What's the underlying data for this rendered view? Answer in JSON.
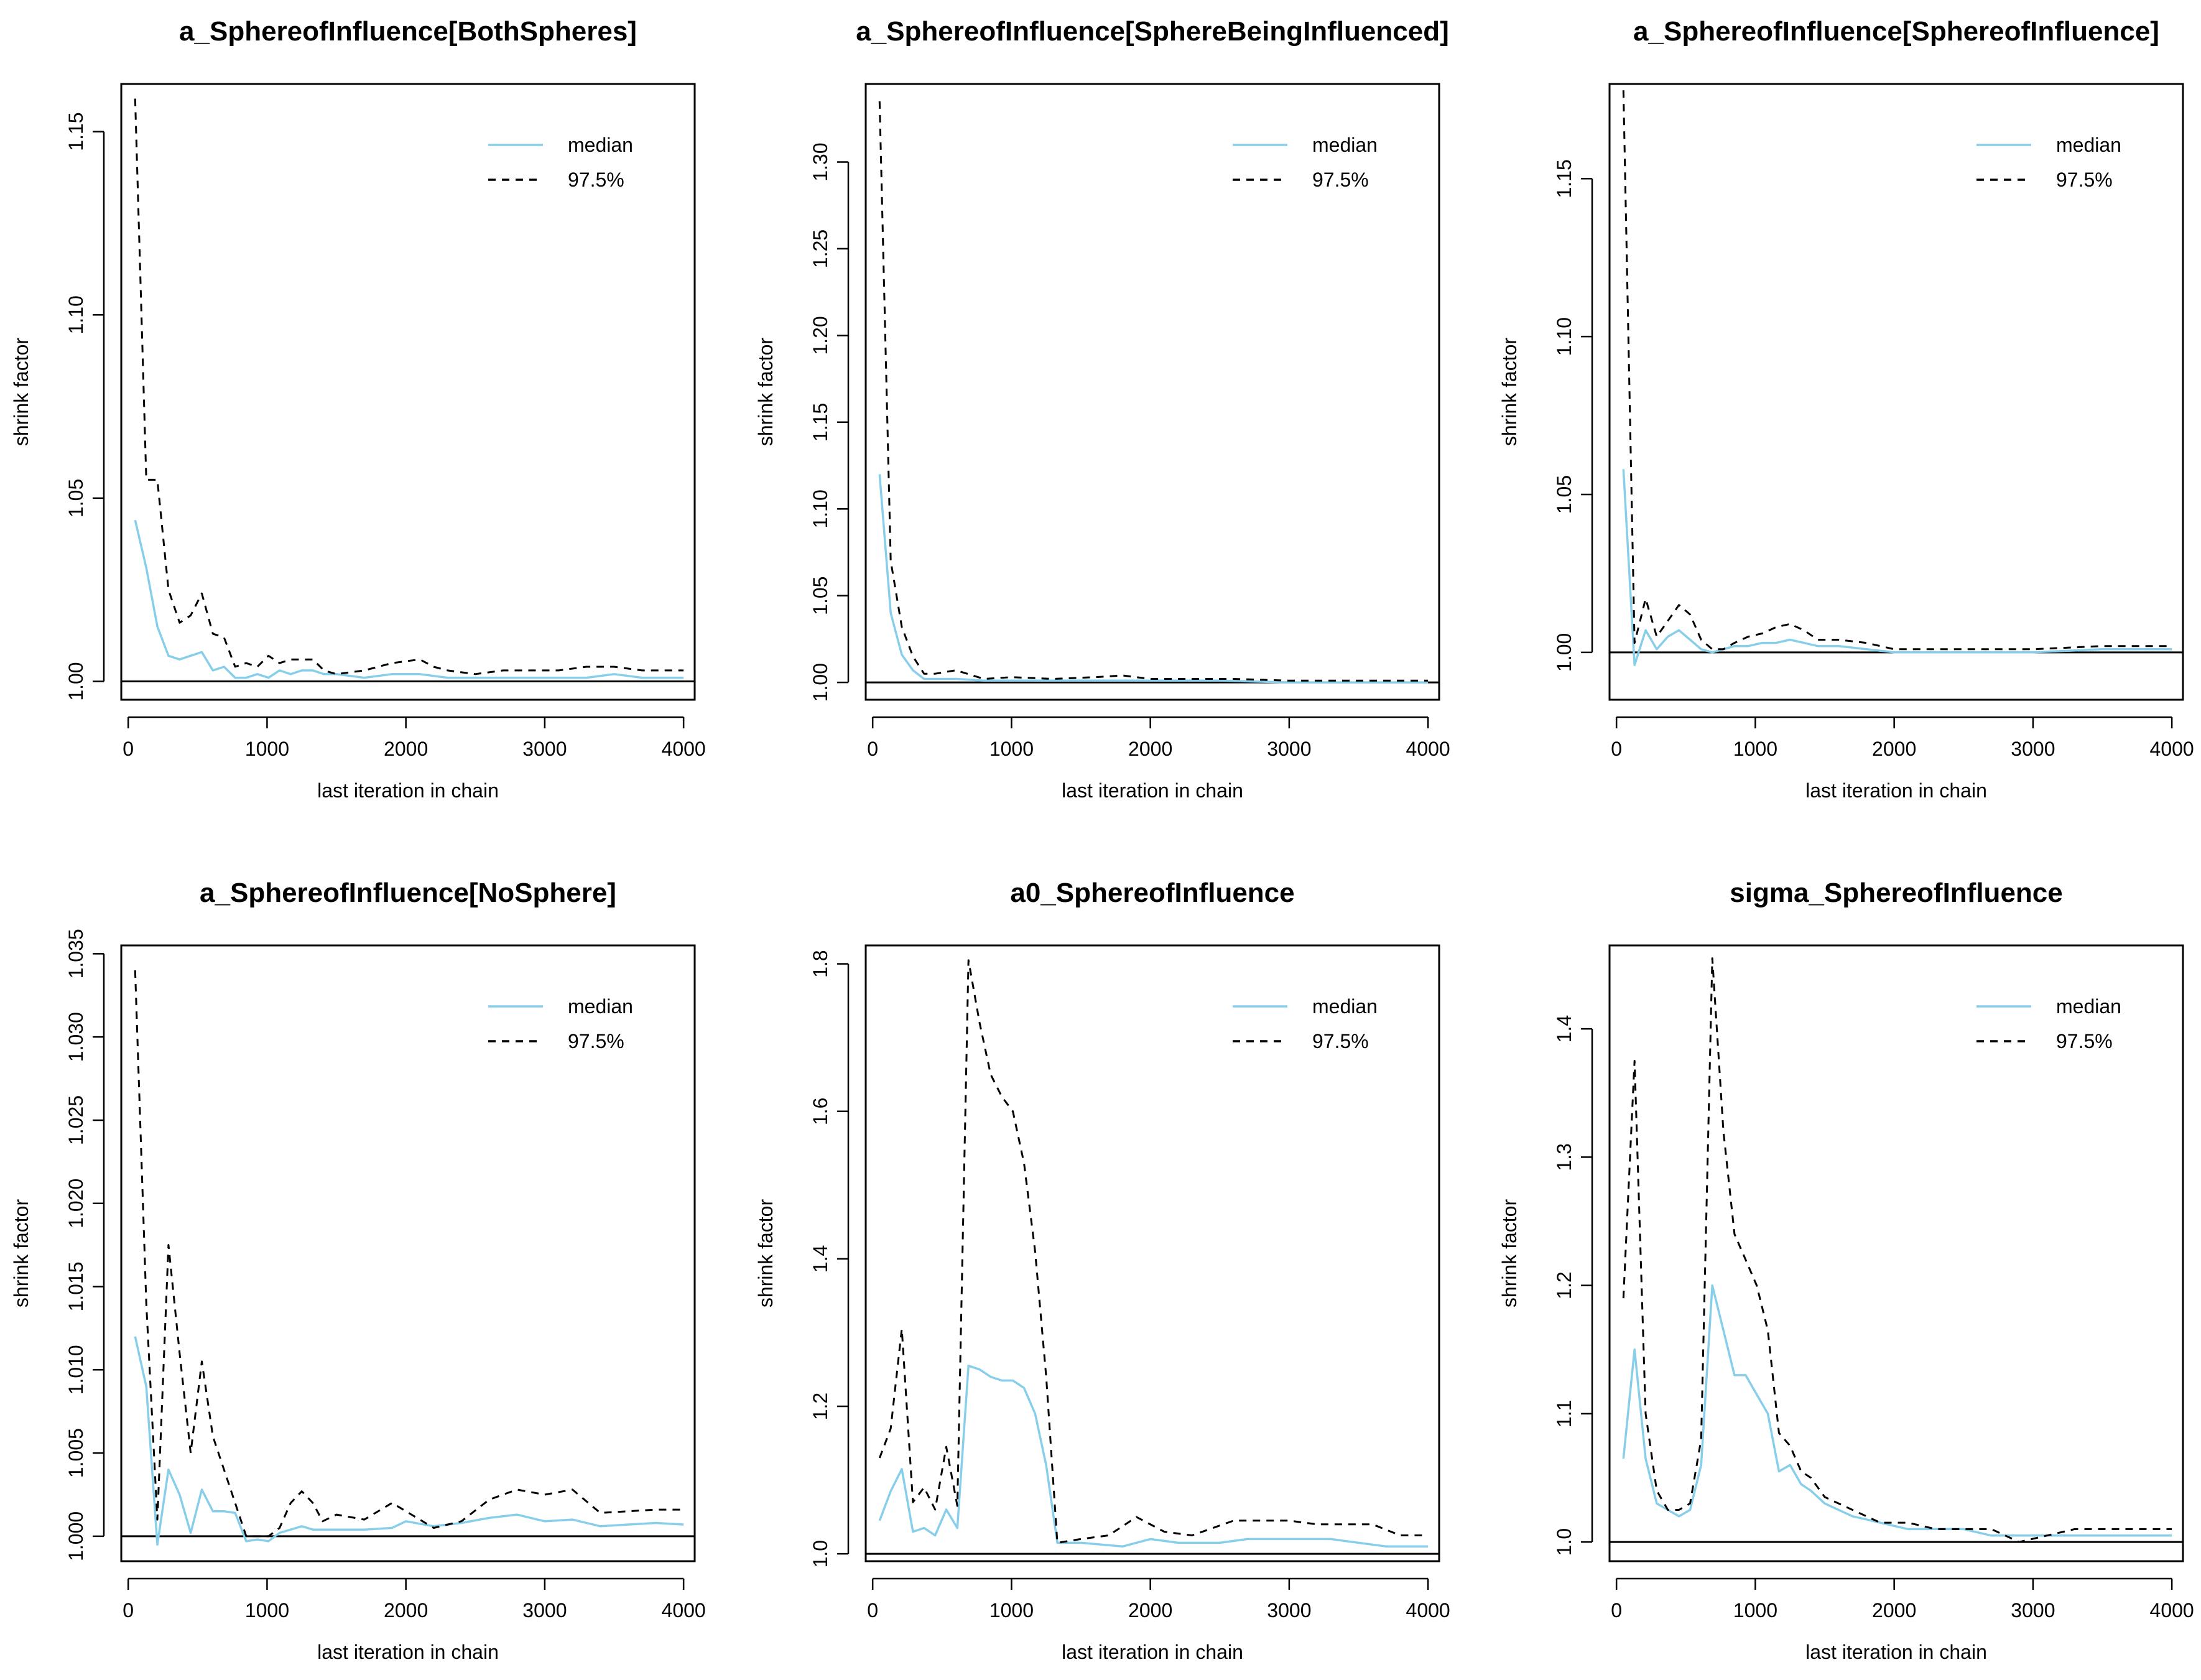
{
  "chart_data": [
    {
      "type": "line",
      "title": "a_SphereofInfluence[BothSpheres]",
      "xlabel": "last iteration in chain",
      "ylabel": "shrink factor",
      "xlim": [
        -50,
        4080
      ],
      "ylim": [
        0.995,
        1.163
      ],
      "xticks": [
        0,
        1000,
        2000,
        3000,
        4000
      ],
      "yticks": [
        "1.00",
        "1.05",
        "1.10",
        "1.15"
      ],
      "reference_line": 1.0,
      "legend": {
        "position": "top-right",
        "entries": [
          "median",
          "97.5%"
        ]
      },
      "series": [
        {
          "name": "median",
          "color": "#87CEEB",
          "x": [
            50,
            130,
            210,
            290,
            370,
            450,
            530,
            610,
            690,
            770,
            850,
            930,
            1010,
            1090,
            1170,
            1250,
            1330,
            1410,
            1500,
            1700,
            1900,
            2100,
            2300,
            2500,
            2700,
            2900,
            3100,
            3300,
            3500,
            3700,
            3900,
            4000
          ],
          "values": [
            1.044,
            1.031,
            1.015,
            1.007,
            1.006,
            1.007,
            1.008,
            1.003,
            1.004,
            1.001,
            1.001,
            1.002,
            1.001,
            1.003,
            1.002,
            1.003,
            1.003,
            1.002,
            1.002,
            1.001,
            1.002,
            1.002,
            1.001,
            1.001,
            1.001,
            1.001,
            1.001,
            1.001,
            1.002,
            1.001,
            1.001,
            1.001
          ]
        },
        {
          "name": "97.5%",
          "color": "#000000",
          "x": [
            50,
            130,
            210,
            290,
            370,
            450,
            530,
            610,
            690,
            770,
            850,
            930,
            1010,
            1090,
            1170,
            1250,
            1330,
            1410,
            1500,
            1700,
            1900,
            2100,
            2200,
            2300,
            2500,
            2700,
            2900,
            3100,
            3300,
            3500,
            3700,
            3900,
            4000
          ],
          "values": [
            1.159,
            1.055,
            1.055,
            1.025,
            1.016,
            1.018,
            1.024,
            1.013,
            1.012,
            1.004,
            1.005,
            1.004,
            1.007,
            1.005,
            1.006,
            1.006,
            1.006,
            1.003,
            1.002,
            1.003,
            1.005,
            1.006,
            1.004,
            1.003,
            1.002,
            1.003,
            1.003,
            1.003,
            1.004,
            1.004,
            1.003,
            1.003,
            1.003
          ]
        }
      ]
    },
    {
      "type": "line",
      "title": "a_SphereofInfluence[SphereBeingInfluenced]",
      "xlabel": "last iteration in chain",
      "ylabel": "shrink factor",
      "xlim": [
        -50,
        4080
      ],
      "ylim": [
        0.99,
        1.345
      ],
      "xticks": [
        0,
        1000,
        2000,
        3000,
        4000
      ],
      "yticks": [
        "1.00",
        "1.05",
        "1.10",
        "1.15",
        "1.20",
        "1.25",
        "1.30"
      ],
      "reference_line": 1.0,
      "legend": {
        "position": "top-right",
        "entries": [
          "median",
          "97.5%"
        ]
      },
      "series": [
        {
          "name": "median",
          "color": "#87CEEB",
          "x": [
            50,
            130,
            210,
            290,
            370,
            450,
            600,
            800,
            1000,
            1500,
            2000,
            2500,
            3000,
            3500,
            4000
          ],
          "values": [
            1.12,
            1.04,
            1.016,
            1.007,
            1.002,
            1.002,
            1.002,
            1.001,
            1.001,
            1.001,
            1.001,
            1.001,
            1.0,
            1.0,
            1.0
          ]
        },
        {
          "name": "97.5%",
          "color": "#000000",
          "x": [
            50,
            130,
            210,
            290,
            370,
            450,
            600,
            800,
            1000,
            1300,
            1600,
            1800,
            2000,
            2300,
            2600,
            3000,
            3500,
            4000
          ],
          "values": [
            1.335,
            1.07,
            1.032,
            1.015,
            1.005,
            1.005,
            1.007,
            1.002,
            1.003,
            1.002,
            1.003,
            1.004,
            1.002,
            1.002,
            1.002,
            1.001,
            1.001,
            1.001
          ]
        }
      ]
    },
    {
      "type": "line",
      "title": "a_SphereofInfluence[SphereofInfluence]",
      "xlabel": "last iteration in chain",
      "ylabel": "shrink factor",
      "xlim": [
        -50,
        4080
      ],
      "ylim": [
        0.985,
        1.18
      ],
      "xticks": [
        0,
        1000,
        2000,
        3000,
        4000
      ],
      "yticks": [
        "1.00",
        "1.05",
        "1.10",
        "1.15"
      ],
      "reference_line": 1.0,
      "legend": {
        "position": "top-right",
        "entries": [
          "median",
          "97.5%"
        ]
      },
      "series": [
        {
          "name": "median",
          "color": "#87CEEB",
          "x": [
            50,
            130,
            210,
            290,
            370,
            450,
            530,
            610,
            690,
            770,
            850,
            950,
            1050,
            1150,
            1250,
            1350,
            1450,
            1600,
            1800,
            2000,
            2300,
            2600,
            3000,
            3500,
            4000
          ],
          "values": [
            1.058,
            0.996,
            1.007,
            1.001,
            1.005,
            1.007,
            1.004,
            1.001,
            1.0,
            1.001,
            1.002,
            1.002,
            1.003,
            1.003,
            1.004,
            1.003,
            1.002,
            1.002,
            1.001,
            1.0,
            1.0,
            1.0,
            1.0,
            1.001,
            1.001
          ]
        },
        {
          "name": "97.5%",
          "color": "#000000",
          "x": [
            50,
            130,
            210,
            290,
            370,
            450,
            530,
            610,
            690,
            770,
            850,
            950,
            1050,
            1150,
            1250,
            1350,
            1450,
            1600,
            1800,
            2000,
            2300,
            2600,
            3000,
            3500,
            4000
          ],
          "values": [
            1.178,
            1.003,
            1.017,
            1.005,
            1.01,
            1.015,
            1.012,
            1.004,
            1.001,
            1.001,
            1.003,
            1.005,
            1.006,
            1.008,
            1.009,
            1.007,
            1.004,
            1.004,
            1.003,
            1.001,
            1.001,
            1.001,
            1.001,
            1.002,
            1.002
          ]
        }
      ]
    },
    {
      "type": "line",
      "title": "a_SphereofInfluence[NoSphere]",
      "xlabel": "last iteration in chain",
      "ylabel": "shrink factor",
      "xlim": [
        -50,
        4080
      ],
      "ylim": [
        -0.0015,
        0.0355
      ],
      "y_offset": 1.0,
      "xticks": [
        0,
        1000,
        2000,
        3000,
        4000
      ],
      "yticks": [
        "1.000",
        "1.005",
        "1.010",
        "1.015",
        "1.020",
        "1.025",
        "1.030",
        "1.035"
      ],
      "reference_line": 1.0,
      "legend": {
        "position": "top-right",
        "entries": [
          "median",
          "97.5%"
        ]
      },
      "series": [
        {
          "name": "median",
          "color": "#87CEEB",
          "x": [
            50,
            130,
            210,
            290,
            370,
            450,
            530,
            610,
            690,
            770,
            850,
            930,
            1010,
            1090,
            1170,
            1250,
            1330,
            1500,
            1700,
            1900,
            2000,
            2200,
            2400,
            2600,
            2800,
            3000,
            3200,
            3400,
            3600,
            3800,
            4000
          ],
          "values": [
            0.012,
            0.009,
            -0.0005,
            0.004,
            0.0025,
            0.0002,
            0.0028,
            0.0015,
            0.0015,
            0.0014,
            -0.0003,
            -0.0002,
            -0.0003,
            0.0002,
            0.0004,
            0.0006,
            0.0004,
            0.0004,
            0.0004,
            0.0005,
            0.0009,
            0.0006,
            0.0008,
            0.0011,
            0.0013,
            0.0009,
            0.001,
            0.0006,
            0.0007,
            0.0008,
            0.0007
          ]
        },
        {
          "name": "97.5%",
          "color": "#000000",
          "x": [
            50,
            130,
            210,
            290,
            370,
            450,
            530,
            610,
            690,
            770,
            850,
            930,
            1010,
            1090,
            1170,
            1250,
            1330,
            1400,
            1500,
            1700,
            1900,
            2000,
            2200,
            2400,
            2600,
            2800,
            3000,
            3200,
            3400,
            3600,
            3800,
            4000
          ],
          "values": [
            0.034,
            0.014,
            0.001,
            0.0175,
            0.011,
            0.005,
            0.0105,
            0.006,
            0.004,
            0.002,
            0.0,
            0.0,
            0.0,
            0.0005,
            0.002,
            0.0027,
            0.002,
            0.0009,
            0.0013,
            0.001,
            0.002,
            0.0015,
            0.0005,
            0.0009,
            0.0022,
            0.0028,
            0.0025,
            0.0028,
            0.0014,
            0.0015,
            0.0016,
            0.0016
          ]
        }
      ]
    },
    {
      "type": "line",
      "title": "a0_SphereofInfluence",
      "xlabel": "last iteration in chain",
      "ylabel": "shrink factor",
      "xlim": [
        -50,
        4080
      ],
      "ylim": [
        0.99,
        1.825
      ],
      "xticks": [
        0,
        1000,
        2000,
        3000,
        4000
      ],
      "yticks": [
        "1.0",
        "1.2",
        "1.4",
        "1.6",
        "1.8"
      ],
      "reference_line": 1.0,
      "legend": {
        "position": "top-right",
        "entries": [
          "median",
          "97.5%"
        ]
      },
      "series": [
        {
          "name": "median",
          "color": "#87CEEB",
          "x": [
            50,
            130,
            210,
            290,
            370,
            450,
            530,
            610,
            690,
            770,
            850,
            930,
            1010,
            1090,
            1170,
            1250,
            1330,
            1500,
            1800,
            2000,
            2200,
            2500,
            2700,
            3000,
            3300,
            3500,
            3700,
            4000
          ],
          "values": [
            1.045,
            1.085,
            1.115,
            1.03,
            1.035,
            1.025,
            1.06,
            1.035,
            1.255,
            1.25,
            1.24,
            1.235,
            1.235,
            1.225,
            1.19,
            1.12,
            1.015,
            1.015,
            1.01,
            1.02,
            1.015,
            1.015,
            1.02,
            1.02,
            1.02,
            1.015,
            1.01,
            1.01
          ]
        },
        {
          "name": "97.5%",
          "color": "#000000",
          "x": [
            50,
            130,
            210,
            290,
            370,
            450,
            530,
            610,
            690,
            770,
            850,
            930,
            1010,
            1090,
            1170,
            1250,
            1330,
            1500,
            1700,
            1900,
            2100,
            2300,
            2600,
            2800,
            3000,
            3200,
            3400,
            3600,
            3800,
            4000
          ],
          "values": [
            1.13,
            1.17,
            1.305,
            1.07,
            1.09,
            1.06,
            1.145,
            1.065,
            1.805,
            1.72,
            1.65,
            1.62,
            1.6,
            1.53,
            1.41,
            1.24,
            1.015,
            1.02,
            1.025,
            1.05,
            1.03,
            1.025,
            1.045,
            1.045,
            1.045,
            1.04,
            1.04,
            1.04,
            1.025,
            1.025
          ]
        }
      ]
    },
    {
      "type": "line",
      "title": "sigma_SphereofInfluence",
      "xlabel": "last iteration in chain",
      "ylabel": "shrink factor",
      "xlim": [
        -50,
        4080
      ],
      "ylim": [
        0.985,
        1.465
      ],
      "xticks": [
        0,
        1000,
        2000,
        3000,
        4000
      ],
      "yticks": [
        "1.0",
        "1.1",
        "1.2",
        "1.3",
        "1.4"
      ],
      "reference_line": 1.0,
      "legend": {
        "position": "top-right",
        "entries": [
          "median",
          "97.5%"
        ]
      },
      "series": [
        {
          "name": "median",
          "color": "#87CEEB",
          "x": [
            50,
            130,
            210,
            290,
            370,
            450,
            530,
            610,
            690,
            770,
            850,
            930,
            1010,
            1090,
            1170,
            1250,
            1330,
            1400,
            1500,
            1700,
            1900,
            2100,
            2300,
            2500,
            2700,
            2900,
            3100,
            3300,
            3500,
            3700,
            3900,
            4000
          ],
          "values": [
            1.065,
            1.15,
            1.065,
            1.03,
            1.025,
            1.02,
            1.025,
            1.06,
            1.2,
            1.165,
            1.13,
            1.13,
            1.115,
            1.1,
            1.055,
            1.06,
            1.045,
            1.04,
            1.03,
            1.02,
            1.015,
            1.01,
            1.01,
            1.01,
            1.005,
            1.005,
            1.005,
            1.005,
            1.005,
            1.005,
            1.005,
            1.005
          ]
        },
        {
          "name": "97.5%",
          "color": "#000000",
          "x": [
            50,
            130,
            210,
            290,
            370,
            450,
            530,
            610,
            690,
            770,
            850,
            930,
            1010,
            1090,
            1170,
            1250,
            1330,
            1400,
            1500,
            1700,
            1900,
            2100,
            2300,
            2500,
            2700,
            2900,
            3100,
            3300,
            3500,
            3700,
            3900,
            4000
          ],
          "values": [
            1.19,
            1.375,
            1.1,
            1.04,
            1.025,
            1.025,
            1.03,
            1.08,
            1.455,
            1.32,
            1.24,
            1.22,
            1.2,
            1.165,
            1.085,
            1.075,
            1.055,
            1.05,
            1.035,
            1.025,
            1.015,
            1.015,
            1.01,
            1.01,
            1.01,
            1.0,
            1.005,
            1.01,
            1.01,
            1.01,
            1.01,
            1.01
          ]
        }
      ]
    }
  ]
}
